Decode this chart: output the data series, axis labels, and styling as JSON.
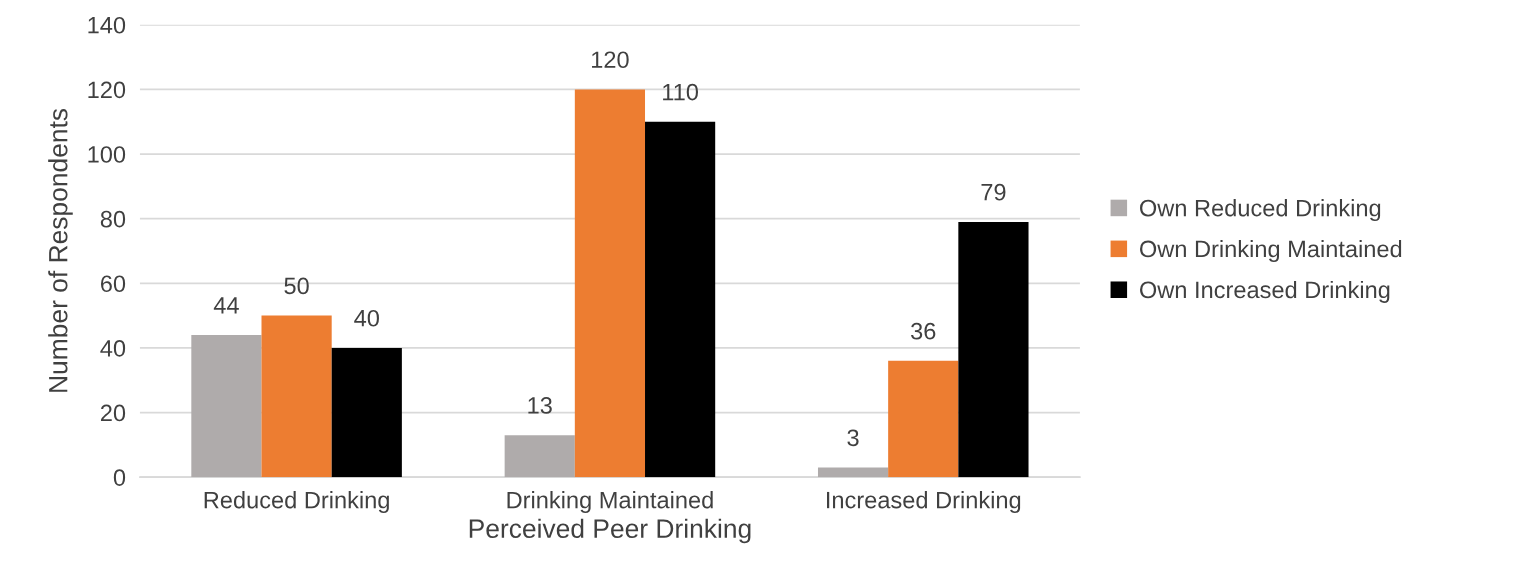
{
  "chart_data": {
    "type": "bar",
    "xlabel": "Perceived Peer Drinking",
    "ylabel": "Number of Respondents",
    "categories": [
      "Reduced Drinking",
      "Drinking Maintained",
      "Increased Drinking"
    ],
    "series": [
      {
        "name": "Own Reduced Drinking",
        "color": "#afabab",
        "values": [
          44,
          13,
          3
        ]
      },
      {
        "name": "Own Drinking Maintained",
        "color": "#ed7d31",
        "values": [
          50,
          120,
          36
        ]
      },
      {
        "name": "Own Increased Drinking",
        "color": "#000000",
        "values": [
          40,
          110,
          79
        ]
      }
    ],
    "ylim": [
      0,
      140
    ],
    "yticks": [
      0,
      20,
      40,
      60,
      80,
      100,
      120,
      140
    ],
    "grid": "y",
    "legend": "right",
    "data_labels": true
  }
}
